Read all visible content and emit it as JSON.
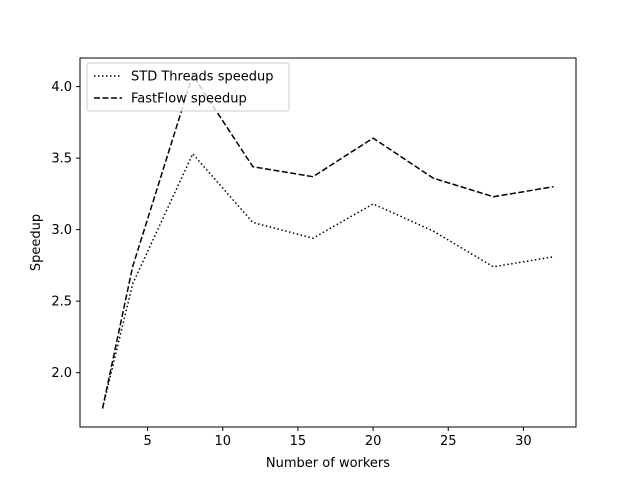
{
  "chart_data": {
    "type": "line",
    "title": "",
    "xlabel": "Number of workers",
    "ylabel": "Speedup",
    "xlim": [
      0.5,
      33.5
    ],
    "ylim": [
      1.62,
      4.2
    ],
    "xticks": [
      5,
      10,
      15,
      20,
      25,
      30
    ],
    "yticks": [
      2.0,
      2.5,
      3.0,
      3.5,
      4.0
    ],
    "ytick_labels": [
      "2.0",
      "2.5",
      "3.0",
      "3.5",
      "4.0"
    ],
    "grid": false,
    "legend_position": "top-left",
    "x": [
      2,
      4,
      8,
      12,
      16,
      20,
      24,
      28,
      32
    ],
    "series": [
      {
        "name": "STD Threads speedup",
        "style": "dotted",
        "color": "#000000",
        "values": [
          1.75,
          2.62,
          3.53,
          3.05,
          2.94,
          3.18,
          2.99,
          2.74,
          2.81
        ]
      },
      {
        "name": "FastFlow speedup",
        "style": "dashed",
        "color": "#000000",
        "values": [
          1.75,
          2.74,
          4.08,
          3.44,
          3.37,
          3.64,
          3.36,
          3.23,
          3.3
        ]
      }
    ]
  }
}
